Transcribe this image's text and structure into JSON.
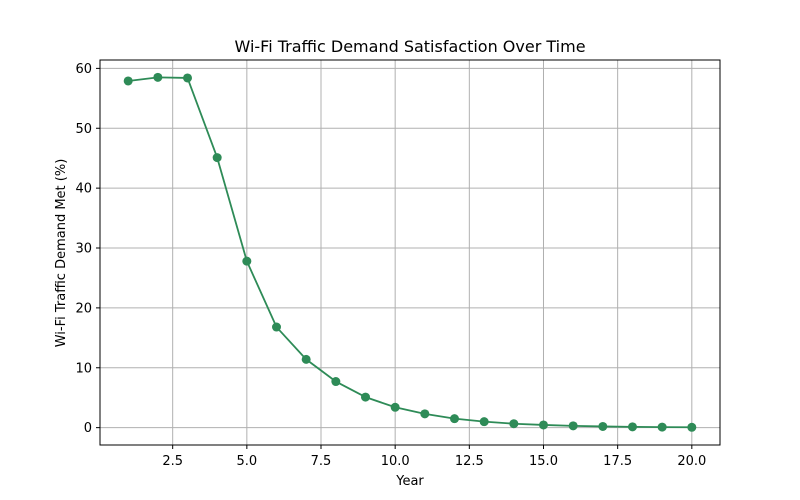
{
  "chart_data": {
    "type": "line",
    "title": "Wi-Fi Traffic Demand Satisfaction Over Time",
    "xlabel": "Year",
    "ylabel": "Wi-Fi Traffic Demand Met (%)",
    "xlim": [
      0.05,
      20.95
    ],
    "ylim": [
      -2.9,
      61.4
    ],
    "xticks": [
      2.5,
      5.0,
      7.5,
      10.0,
      12.5,
      15.0,
      17.5,
      20.0
    ],
    "xtick_labels": [
      "2.5",
      "5.0",
      "7.5",
      "10.0",
      "12.5",
      "15.0",
      "17.5",
      "20.0"
    ],
    "yticks": [
      0,
      10,
      20,
      30,
      40,
      50,
      60
    ],
    "ytick_labels": [
      "0",
      "10",
      "20",
      "30",
      "40",
      "50",
      "60"
    ],
    "grid": true,
    "series": [
      {
        "color": "#2e8b57",
        "marker": "circle",
        "x": [
          1,
          2,
          3,
          4,
          5,
          6,
          7,
          8,
          9,
          10,
          11,
          12,
          13,
          14,
          15,
          16,
          17,
          18,
          19,
          20
        ],
        "y": [
          57.9,
          58.5,
          58.4,
          45.1,
          27.8,
          16.8,
          11.4,
          7.7,
          5.1,
          3.4,
          2.3,
          1.5,
          1.0,
          0.65,
          0.45,
          0.3,
          0.2,
          0.13,
          0.09,
          0.06
        ]
      }
    ]
  }
}
